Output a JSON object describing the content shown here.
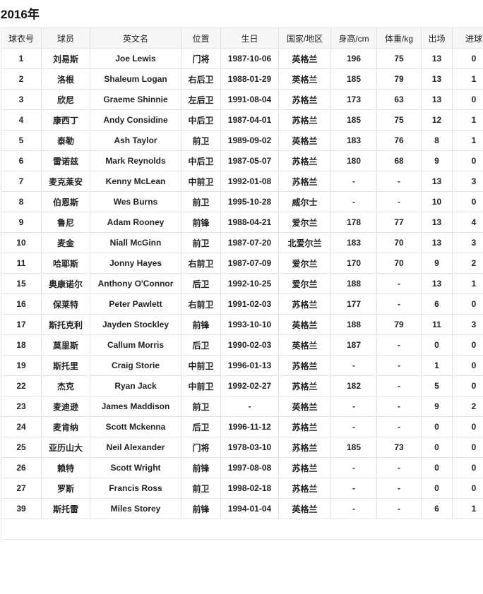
{
  "title": "2016年",
  "headers": [
    "球衣号",
    "球员",
    "英文名",
    "位置",
    "生日",
    "国家/地区",
    "身高/cm",
    "体重/kg",
    "出场",
    "进球"
  ],
  "rows": [
    [
      "1",
      "刘易斯",
      "Joe Lewis",
      "门将",
      "1987-10-06",
      "英格兰",
      "196",
      "75",
      "13",
      "0"
    ],
    [
      "2",
      "洛根",
      "Shaleum Logan",
      "右后卫",
      "1988-01-29",
      "英格兰",
      "185",
      "79",
      "13",
      "1"
    ],
    [
      "3",
      "欣尼",
      "Graeme Shinnie",
      "左后卫",
      "1991-08-04",
      "苏格兰",
      "173",
      "63",
      "13",
      "0"
    ],
    [
      "4",
      "康西丁",
      "Andy Considine",
      "中后卫",
      "1987-04-01",
      "苏格兰",
      "185",
      "75",
      "12",
      "1"
    ],
    [
      "5",
      "泰勒",
      "Ash Taylor",
      "前卫",
      "1989-09-02",
      "英格兰",
      "183",
      "76",
      "8",
      "1"
    ],
    [
      "6",
      "雷诺兹",
      "Mark Reynolds",
      "中后卫",
      "1987-05-07",
      "苏格兰",
      "180",
      "68",
      "9",
      "0"
    ],
    [
      "7",
      "麦克莱安",
      "Kenny McLean",
      "中前卫",
      "1992-01-08",
      "苏格兰",
      "-",
      "-",
      "13",
      "3"
    ],
    [
      "8",
      "伯恩斯",
      "Wes Burns",
      "前卫",
      "1995-10-28",
      "威尔士",
      "-",
      "-",
      "10",
      "0"
    ],
    [
      "9",
      "鲁尼",
      "Adam Rooney",
      "前锋",
      "1988-04-21",
      "爱尔兰",
      "178",
      "77",
      "13",
      "4"
    ],
    [
      "10",
      "麦金",
      "Niall McGinn",
      "前卫",
      "1987-07-20",
      "北爱尔兰",
      "183",
      "70",
      "13",
      "3"
    ],
    [
      "11",
      "哈耶斯",
      "Jonny Hayes",
      "右前卫",
      "1987-07-09",
      "爱尔兰",
      "170",
      "70",
      "9",
      "2"
    ],
    [
      "15",
      "奥康诺尔",
      "Anthony O'Connor",
      "后卫",
      "1992-10-25",
      "爱尔兰",
      "188",
      "-",
      "13",
      "1"
    ],
    [
      "16",
      "保莱特",
      "Peter Pawlett",
      "右前卫",
      "1991-02-03",
      "苏格兰",
      "177",
      "-",
      "6",
      "0"
    ],
    [
      "17",
      "斯托克利",
      "Jayden Stockley",
      "前锋",
      "1993-10-10",
      "英格兰",
      "188",
      "79",
      "11",
      "3"
    ],
    [
      "18",
      "莫里斯",
      "Callum Morris",
      "后卫",
      "1990-02-03",
      "英格兰",
      "187",
      "-",
      "0",
      "0"
    ],
    [
      "19",
      "斯托里",
      "Craig Storie",
      "中前卫",
      "1996-01-13",
      "苏格兰",
      "-",
      "-",
      "1",
      "0"
    ],
    [
      "22",
      "杰克",
      "Ryan Jack",
      "中前卫",
      "1992-02-27",
      "苏格兰",
      "182",
      "-",
      "5",
      "0"
    ],
    [
      "23",
      "麦迪逊",
      "James Maddison",
      "前卫",
      "-",
      "英格兰",
      "-",
      "-",
      "9",
      "2"
    ],
    [
      "24",
      "麦肯纳",
      "Scott Mckenna",
      "后卫",
      "1996-11-12",
      "苏格兰",
      "-",
      "-",
      "0",
      "0"
    ],
    [
      "25",
      "亚历山大",
      "Neil Alexander",
      "门将",
      "1978-03-10",
      "苏格兰",
      "185",
      "73",
      "0",
      "0"
    ],
    [
      "26",
      "赖特",
      "Scott Wright",
      "前锋",
      "1997-08-08",
      "苏格兰",
      "-",
      "-",
      "0",
      "0"
    ],
    [
      "27",
      "罗斯",
      "Francis Ross",
      "前卫",
      "1998-02-18",
      "苏格兰",
      "-",
      "-",
      "0",
      "0"
    ],
    [
      "39",
      "斯托雷",
      "Miles Storey",
      "前锋",
      "1994-01-04",
      "英格兰",
      "-",
      "-",
      "6",
      "1"
    ]
  ]
}
